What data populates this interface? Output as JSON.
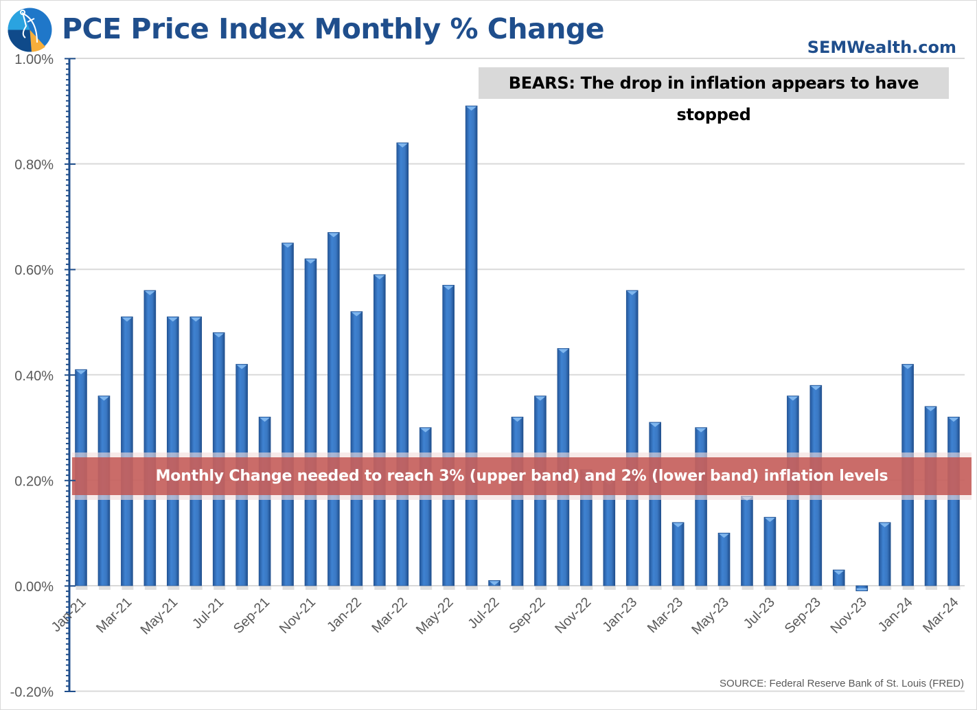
{
  "header": {
    "title": "PCE Price Index Monthly % Change",
    "brand": "SEMWealth.com",
    "logo_icon": "compass-pie-icon"
  },
  "annotations": {
    "bears_callout": "BEARS: The drop in inflation appears to have stopped",
    "band_label": "Monthly Change needed to reach 3% (upper band) and 2% (lower band) inflation levels",
    "source": "SOURCE: Federal Reserve Bank of St. Louis (FRED)"
  },
  "colors": {
    "title": "#1f4e8c",
    "bar": "#3a78c3",
    "bar_dark": "#24579a",
    "bar_cap": "#7fb6ee",
    "axis": "#1f4e8c",
    "grid": "#d9d9d9",
    "band": "#c0504d",
    "callout_bg": "#d9d9d9"
  },
  "chart_data": {
    "type": "bar",
    "title": "PCE Price Index Monthly % Change",
    "xlabel": "",
    "ylabel": "",
    "ylim": [
      -0.2,
      1.0
    ],
    "yticks": [
      -0.2,
      0.0,
      0.2,
      0.4,
      0.6,
      0.8,
      1.0
    ],
    "ytick_labels": [
      "-0.20%",
      "0.00%",
      "0.20%",
      "0.40%",
      "0.60%",
      "0.80%",
      "1.00%"
    ],
    "grid": true,
    "legend": "none",
    "band": {
      "lower": 0.165,
      "upper": 0.247,
      "label": "Monthly Change needed to reach 3% (upper band) and 2% (lower band) inflation levels"
    },
    "categories": [
      "Jan-21",
      "Feb-21",
      "Mar-21",
      "Apr-21",
      "May-21",
      "Jun-21",
      "Jul-21",
      "Aug-21",
      "Sep-21",
      "Oct-21",
      "Nov-21",
      "Dec-21",
      "Jan-22",
      "Feb-22",
      "Mar-22",
      "Apr-22",
      "May-22",
      "Jun-22",
      "Jul-22",
      "Aug-22",
      "Sep-22",
      "Oct-22",
      "Nov-22",
      "Dec-22",
      "Jan-23",
      "Feb-23",
      "Mar-23",
      "Apr-23",
      "May-23",
      "Jun-23",
      "Jul-23",
      "Aug-23",
      "Sep-23",
      "Oct-23",
      "Nov-23",
      "Dec-23",
      "Jan-24",
      "Feb-24",
      "Mar-24"
    ],
    "xtick_labels": [
      "Jan-21",
      "Mar-21",
      "May-21",
      "Jul-21",
      "Sep-21",
      "Nov-21",
      "Jan-22",
      "Mar-22",
      "May-22",
      "Jul-22",
      "Sep-22",
      "Nov-22",
      "Jan-23",
      "Mar-23",
      "May-23",
      "Jul-23",
      "Sep-23",
      "Nov-23",
      "Jan-24",
      "Mar-24"
    ],
    "series": [
      {
        "name": "PCE Monthly % Change",
        "values": [
          0.41,
          0.36,
          0.51,
          0.56,
          0.51,
          0.51,
          0.48,
          0.42,
          0.32,
          0.65,
          0.62,
          0.67,
          0.52,
          0.59,
          0.84,
          0.3,
          0.57,
          0.91,
          0.01,
          0.32,
          0.36,
          0.45,
          0.22,
          0.2,
          0.56,
          0.31,
          0.12,
          0.3,
          0.1,
          0.17,
          0.13,
          0.36,
          0.38,
          0.03,
          -0.01,
          0.12,
          0.42,
          0.34,
          0.32
        ]
      }
    ]
  }
}
